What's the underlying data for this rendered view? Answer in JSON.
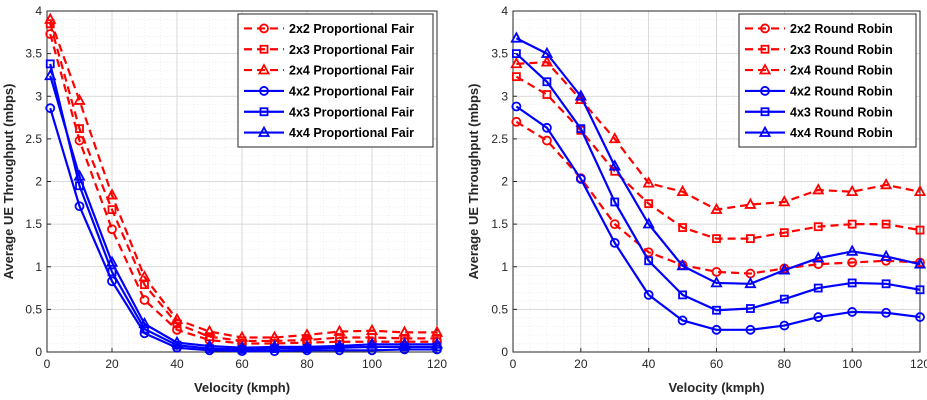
{
  "chart_data": [
    {
      "type": "line",
      "xlabel": "Velocity (kmph)",
      "ylabel": "Average UE Throughput (mbps)",
      "xlim": [
        0,
        120
      ],
      "ylim": [
        0,
        4
      ],
      "xticks": [
        "0",
        "20",
        "40",
        "60",
        "80",
        "100",
        "120"
      ],
      "yticks": [
        "0",
        "0.5",
        "1",
        "1.5",
        "2",
        "2.5",
        "3",
        "3.5",
        "4"
      ],
      "grid": true,
      "minor_grid": true,
      "legend_position": "top-right",
      "x": [
        1,
        10,
        20,
        30,
        40,
        50,
        60,
        70,
        80,
        90,
        100,
        110,
        120
      ],
      "series": [
        {
          "name": "2x2 Proportional Fair",
          "color": "#ff0000",
          "dash": true,
          "marker": "circle",
          "values": [
            3.73,
            2.48,
            1.44,
            0.61,
            0.26,
            0.14,
            0.1,
            0.1,
            0.11,
            0.12,
            0.12,
            0.12,
            0.12
          ]
        },
        {
          "name": "2x3 Proportional Fair",
          "color": "#ff0000",
          "dash": true,
          "marker": "square",
          "values": [
            3.85,
            2.62,
            1.67,
            0.79,
            0.33,
            0.18,
            0.13,
            0.13,
            0.14,
            0.17,
            0.17,
            0.16,
            0.16
          ]
        },
        {
          "name": "2x4 Proportional Fair",
          "color": "#ff0000",
          "dash": true,
          "marker": "triangle",
          "values": [
            3.9,
            2.95,
            1.84,
            0.88,
            0.38,
            0.24,
            0.17,
            0.17,
            0.2,
            0.24,
            0.25,
            0.23,
            0.23
          ]
        },
        {
          "name": "4x2 Proportional Fair",
          "color": "#0000ff",
          "dash": false,
          "marker": "circle",
          "values": [
            2.86,
            1.71,
            0.83,
            0.22,
            0.05,
            0.02,
            0.01,
            0.01,
            0.02,
            0.02,
            0.02,
            0.03,
            0.03
          ]
        },
        {
          "name": "4x3 Proportional Fair",
          "color": "#0000ff",
          "dash": false,
          "marker": "square",
          "values": [
            3.38,
            1.95,
            0.94,
            0.27,
            0.08,
            0.04,
            0.03,
            0.04,
            0.04,
            0.05,
            0.06,
            0.06,
            0.06
          ]
        },
        {
          "name": "4x4 Proportional Fair",
          "color": "#0000ff",
          "dash": false,
          "marker": "triangle",
          "values": [
            3.24,
            2.06,
            1.05,
            0.33,
            0.11,
            0.07,
            0.05,
            0.06,
            0.06,
            0.07,
            0.09,
            0.09,
            0.09
          ]
        }
      ]
    },
    {
      "type": "line",
      "xlabel": "Velocity (kmph)",
      "ylabel": "Average UE Throughput (mbps)",
      "xlim": [
        0,
        120
      ],
      "ylim": [
        0,
        4
      ],
      "xticks": [
        "0",
        "20",
        "40",
        "60",
        "80",
        "100",
        "120"
      ],
      "yticks": [
        "0",
        "0.5",
        "1",
        "1.5",
        "2",
        "2.5",
        "3",
        "3.5",
        "4"
      ],
      "grid": true,
      "minor_grid": true,
      "legend_position": "top-right",
      "x": [
        1,
        10,
        20,
        30,
        40,
        50,
        60,
        70,
        80,
        90,
        100,
        110,
        120
      ],
      "series": [
        {
          "name": "2x2 Round Robin",
          "color": "#ff0000",
          "dash": true,
          "marker": "circle",
          "values": [
            2.7,
            2.48,
            2.04,
            1.5,
            1.17,
            1.02,
            0.94,
            0.92,
            0.98,
            1.03,
            1.05,
            1.07,
            1.05
          ]
        },
        {
          "name": "2x3 Round Robin",
          "color": "#ff0000",
          "dash": true,
          "marker": "square",
          "values": [
            3.23,
            3.02,
            2.6,
            2.12,
            1.74,
            1.46,
            1.33,
            1.33,
            1.4,
            1.47,
            1.5,
            1.5,
            1.43
          ]
        },
        {
          "name": "2x4 Round Robin",
          "color": "#ff0000",
          "dash": true,
          "marker": "triangle",
          "values": [
            3.38,
            3.4,
            2.96,
            2.5,
            1.98,
            1.88,
            1.67,
            1.73,
            1.76,
            1.9,
            1.88,
            1.96,
            1.88
          ]
        },
        {
          "name": "4x2 Round Robin",
          "color": "#0000ff",
          "dash": false,
          "marker": "circle",
          "values": [
            2.88,
            2.63,
            2.03,
            1.28,
            0.67,
            0.37,
            0.26,
            0.26,
            0.31,
            0.41,
            0.47,
            0.46,
            0.41
          ]
        },
        {
          "name": "4x3 Round Robin",
          "color": "#0000ff",
          "dash": false,
          "marker": "square",
          "values": [
            3.5,
            3.17,
            2.62,
            1.76,
            1.07,
            0.67,
            0.49,
            0.51,
            0.62,
            0.75,
            0.81,
            0.8,
            0.73
          ]
        },
        {
          "name": "4x4 Round Robin",
          "color": "#0000ff",
          "dash": false,
          "marker": "triangle",
          "values": [
            3.68,
            3.5,
            3.0,
            2.18,
            1.5,
            1.01,
            0.81,
            0.8,
            0.96,
            1.1,
            1.18,
            1.12,
            1.03
          ]
        }
      ]
    }
  ]
}
